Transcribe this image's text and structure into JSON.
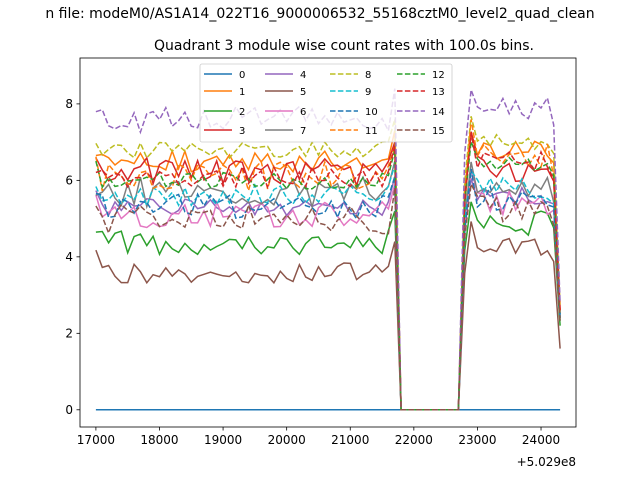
{
  "chart_data": {
    "type": "line",
    "suptitle": "n file: modeM0/AS1A14_022T16_9000006532_55168cztM0_level2_quad_clean",
    "title": "Quadrant 3 module wise count rates with 100.0s bins.",
    "xlabel": "",
    "ylabel": "",
    "offset_text": "+5.029e8",
    "xlim": [
      16750,
      24550
    ],
    "ylim": [
      -0.45,
      9.2
    ],
    "xticks": [
      17000,
      18000,
      19000,
      20000,
      21000,
      22000,
      23000,
      24000
    ],
    "xtick_labels": [
      "17000",
      "18000",
      "19000",
      "20000",
      "21000",
      "22000",
      "23000",
      "24000"
    ],
    "yticks": [
      0,
      2,
      4,
      6,
      8
    ],
    "ytick_labels": [
      "0",
      "2",
      "4",
      "6",
      "8"
    ],
    "legend": {
      "location": "upper center",
      "columns": 4,
      "entries": [
        "0",
        "1",
        "2",
        "3",
        "4",
        "5",
        "6",
        "7",
        "8",
        "9",
        "10",
        "11",
        "12",
        "13",
        "14",
        "15"
      ]
    },
    "x_range": {
      "start": 17000,
      "step": 100,
      "segment_a_end": 21700,
      "gap_start": 21800,
      "gap_end": 22700,
      "segment_b_start": 22800,
      "end": 24300
    },
    "series": [
      {
        "name": "0",
        "color": "#1f77b4",
        "dash": "solid",
        "pre_level": 0.0,
        "post_level": 0.0,
        "post_end": 0.0
      },
      {
        "name": "1",
        "color": "#ff7f0e",
        "dash": "solid",
        "pre_level": 6.5,
        "post_level": 6.8,
        "post_end": 2.5
      },
      {
        "name": "2",
        "color": "#2ca02c",
        "dash": "solid",
        "pre_level": 4.4,
        "post_level": 4.9,
        "post_end": 2.2
      },
      {
        "name": "3",
        "color": "#d62728",
        "dash": "solid",
        "pre_level": 6.2,
        "post_level": 6.3,
        "post_end": 2.6
      },
      {
        "name": "4",
        "color": "#9467bd",
        "dash": "solid",
        "pre_level": 5.3,
        "post_level": 5.6,
        "post_end": 2.5
      },
      {
        "name": "5",
        "color": "#8c564b",
        "dash": "solid",
        "pre_level": 3.6,
        "post_level": 4.2,
        "post_end": 1.6
      },
      {
        "name": "6",
        "color": "#e377c2",
        "dash": "solid",
        "pre_level": 5.1,
        "post_level": 5.4,
        "post_end": 2.4
      },
      {
        "name": "7",
        "color": "#7f7f7f",
        "dash": "solid",
        "pre_level": 5.7,
        "post_level": 5.9,
        "post_end": 2.4
      },
      {
        "name": "8",
        "color": "#bcbd22",
        "dash": "dashed",
        "pre_level": 6.8,
        "post_level": 7.0,
        "post_end": 2.7
      },
      {
        "name": "9",
        "color": "#17becf",
        "dash": "dashed",
        "pre_level": 5.6,
        "post_level": 5.8,
        "post_end": 2.5
      },
      {
        "name": "10",
        "color": "#1f77b4",
        "dash": "dashed",
        "pre_level": 5.3,
        "post_level": 5.5,
        "post_end": 2.4
      },
      {
        "name": "11",
        "color": "#ff7f0e",
        "dash": "dashed",
        "pre_level": 6.1,
        "post_level": 6.6,
        "post_end": 2.6
      },
      {
        "name": "12",
        "color": "#2ca02c",
        "dash": "dashed",
        "pre_level": 6.0,
        "post_level": 6.4,
        "post_end": 2.3
      },
      {
        "name": "13",
        "color": "#d62728",
        "dash": "dashed",
        "pre_level": 6.1,
        "post_level": 6.5,
        "post_end": 2.6
      },
      {
        "name": "14",
        "color": "#9467bd",
        "dash": "dashed",
        "pre_level": 7.6,
        "post_level": 7.9,
        "post_end": 2.8
      },
      {
        "name": "15",
        "color": "#8c564b",
        "dash": "dashed",
        "pre_level": 5.0,
        "post_level": 5.3,
        "post_end": 2.3
      }
    ]
  }
}
